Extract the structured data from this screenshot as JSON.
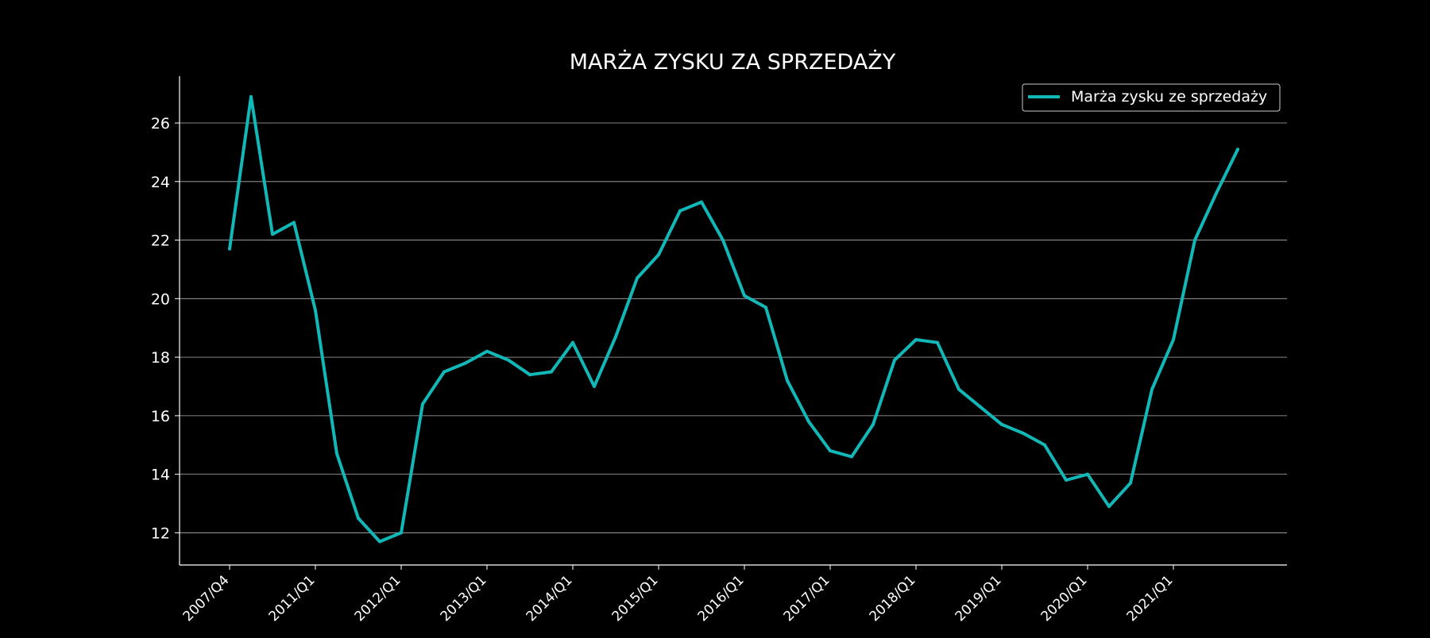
{
  "chart_data": {
    "type": "line",
    "title": "MARŻA ZYSKU ZA SPRZEDAŻY",
    "xlabel": "",
    "ylabel": "",
    "ylim": [
      10.9,
      27.6
    ],
    "yticks": [
      12,
      14,
      16,
      18,
      20,
      22,
      24,
      26
    ],
    "xtick_labels": [
      "2007/Q4",
      "2011/Q1",
      "2012/Q1",
      "2013/Q1",
      "2014/Q1",
      "2015/Q1",
      "2016/Q1",
      "2017/Q1",
      "2018/Q1",
      "2019/Q1",
      "2020/Q1",
      "2021/Q1"
    ],
    "xtick_positions": [
      0,
      4,
      8,
      12,
      16,
      20,
      24,
      28,
      32,
      36,
      40,
      44
    ],
    "grid": "horizontal",
    "legend_position": "top-right",
    "line_color": "#12b8b8",
    "series": [
      {
        "name": "Marża zysku ze sprzedaży",
        "values": [
          21.7,
          26.9,
          22.2,
          22.6,
          19.6,
          14.7,
          12.5,
          11.7,
          12.0,
          16.4,
          17.5,
          17.8,
          18.2,
          17.9,
          17.4,
          17.5,
          18.5,
          17.0,
          18.7,
          20.7,
          21.5,
          23.0,
          23.3,
          22.0,
          20.1,
          19.7,
          17.2,
          15.8,
          14.8,
          14.6,
          15.7,
          17.9,
          18.6,
          18.5,
          16.9,
          16.3,
          15.7,
          15.4,
          15.0,
          13.8,
          14.0,
          12.9,
          13.7,
          16.9,
          18.6,
          22.0,
          23.6,
          25.1
        ]
      }
    ]
  }
}
